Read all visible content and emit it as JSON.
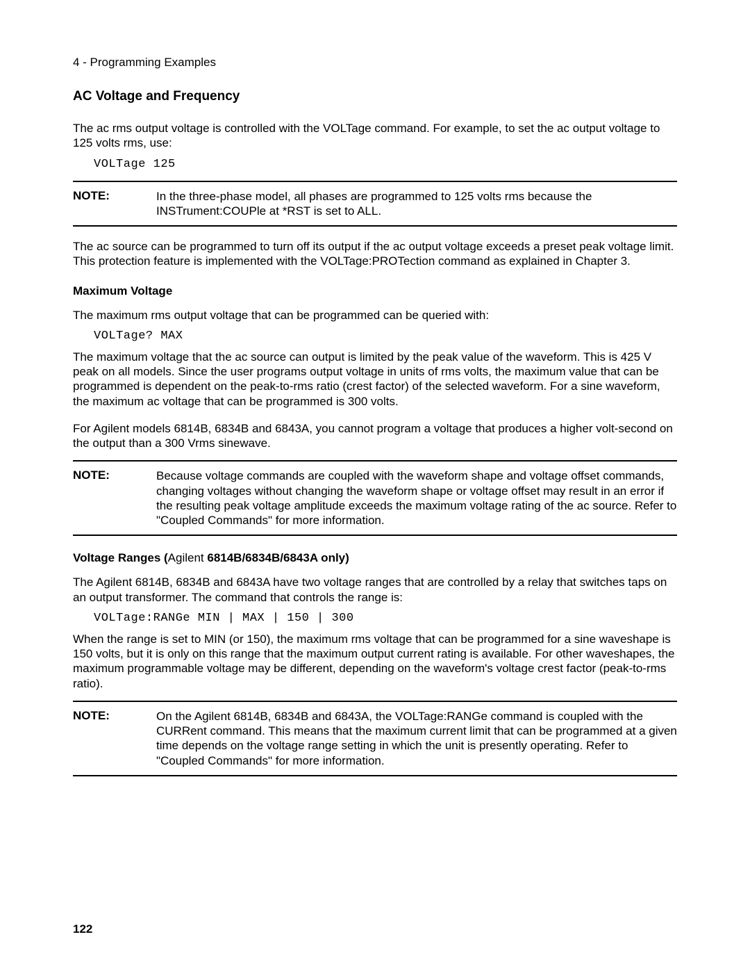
{
  "header": "4 - Programming Examples",
  "title": "AC Voltage and Frequency",
  "p1": "The ac rms output voltage is controlled with the VOLTage command. For example, to set the ac output voltage to 125 volts rms, use:",
  "code1": "VOLTage 125",
  "note_label": "NOTE:",
  "note1": "In the three-phase model, all phases are programmed to 125 volts rms because the INSTrument:COUPle at *RST is set to ALL.",
  "p2": "The ac source can be programmed to turn off its output if the ac output voltage exceeds a preset peak voltage limit. This protection feature is implemented with the VOLTage:PROTection command as explained in Chapter 3.",
  "sub1": "Maximum Voltage",
  "p3": "The maximum rms output voltage that can be programmed can be queried with:",
  "code2": "VOLTage? MAX",
  "p4": "The maximum voltage that the ac source can output is limited by the peak value of the waveform. This is 425 V peak on all models. Since the user programs output voltage in units of rms volts, the maximum value that can be programmed is dependent on the peak-to-rms ratio (crest factor) of the selected waveform. For a sine waveform, the maximum ac voltage that can be programmed is 300 volts.",
  "p5": "For Agilent models 6814B, 6834B and 6843A, you cannot program a voltage that produces a higher volt-second on the output than a 300 Vrms sinewave.",
  "note2": "Because voltage commands are coupled with the waveform shape and voltage offset commands, changing voltages without changing the waveform shape or voltage offset may result in an error if the resulting peak voltage amplitude exceeds the maximum voltage rating of the ac source. Refer to \"Coupled Commands\" for more information.",
  "sub2_a": "Voltage Ranges (",
  "sub2_b": "Agilent ",
  "sub2_c": "6814B/6834B/6843A only)",
  "p6": "The Agilent 6814B, 6834B and 6843A have two voltage ranges that are controlled by a relay that switches taps on an output transformer. The command that controls the range is:",
  "code3": "VOLTage:RANGe MIN | MAX | 150 | 300",
  "p7": "When the range is set to MIN (or 150), the maximum rms voltage that can be programmed for a sine waveshape is 150 volts, but it is only on this range that the maximum output current rating is available. For other waveshapes, the maximum programmable voltage may be different, depending on the waveform's voltage crest factor (peak-to-rms ratio).",
  "note3": "On the Agilent 6814B, 6834B and 6843A, the VOLTage:RANGe command is coupled with the CURRent command. This means that the maximum current limit that can be programmed at a given time depends on the voltage range setting in which the unit is presently operating. Refer to \"Coupled Commands\" for more information.",
  "page_number": "122"
}
